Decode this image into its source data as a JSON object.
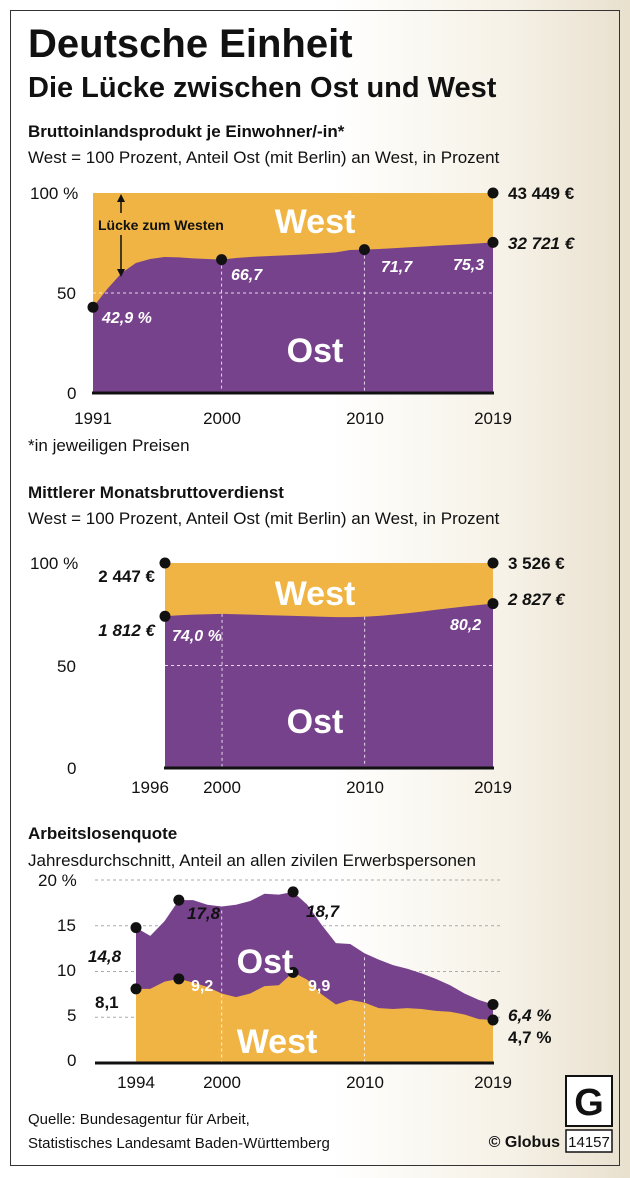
{
  "title": "Deutsche Einheit",
  "subtitle": "Die Lücke zwischen Ost und West",
  "colors": {
    "west": "#EFB443",
    "ost": "#77428C",
    "grid": "#ffffff"
  },
  "chart_data": [
    {
      "type": "area",
      "title": "Bruttoinlandsprodukt je Einwohner/-in*",
      "subtitle": "West = 100 Prozent, Anteil Ost (mit Berlin) an West, in Prozent",
      "footnote": "*in jeweiligen Preisen",
      "xlim": [
        1991,
        2019
      ],
      "ylim": [
        0,
        100
      ],
      "x_ticks": [
        "1991",
        "2000",
        "2010",
        "2019"
      ],
      "y_ticks": [
        "100 %",
        "50",
        "0"
      ],
      "area_labels": {
        "west": "West",
        "ost": "Ost"
      },
      "gap_label": "Lücke zum Westen",
      "x": [
        1991,
        1992,
        1993,
        1994,
        1995,
        1996,
        1997,
        1998,
        1999,
        2000,
        2001,
        2002,
        2003,
        2004,
        2005,
        2006,
        2007,
        2008,
        2009,
        2010,
        2011,
        2012,
        2013,
        2014,
        2015,
        2016,
        2017,
        2018,
        2019
      ],
      "series": [
        {
          "name": "West",
          "values": [
            100,
            100,
            100,
            100,
            100,
            100,
            100,
            100,
            100,
            100,
            100,
            100,
            100,
            100,
            100,
            100,
            100,
            100,
            100,
            100,
            100,
            100,
            100,
            100,
            100,
            100,
            100,
            100,
            100
          ]
        },
        {
          "name": "Ost",
          "values": [
            42.9,
            52,
            60,
            65,
            67,
            68,
            67.8,
            67.3,
            67,
            66.7,
            67.5,
            68,
            68.4,
            68.7,
            69,
            69.4,
            69.8,
            70.3,
            71.5,
            71.7,
            72,
            72.4,
            72.8,
            73.2,
            73.6,
            74,
            74.4,
            74.8,
            75.3
          ]
        }
      ],
      "data_labels": {
        "p1991": "42,9 %",
        "p2000": "66,7",
        "p2010": "71,7",
        "p2019": "75,3"
      },
      "end_values": {
        "west": "43 449 €",
        "ost": "32 721 €"
      }
    },
    {
      "type": "area",
      "title": "Mittlerer Monatsbruttoverdienst",
      "subtitle": "West = 100 Prozent, Anteil Ost (mit Berlin) an West, in Prozent",
      "xlim": [
        1996,
        2019
      ],
      "ylim": [
        0,
        100
      ],
      "x_ticks": [
        "1996",
        "2000",
        "2010",
        "2019"
      ],
      "y_ticks": [
        "100 %",
        "50",
        "0"
      ],
      "area_labels": {
        "west": "West",
        "ost": "Ost"
      },
      "x": [
        1996,
        1997,
        1998,
        1999,
        2000,
        2001,
        2002,
        2003,
        2004,
        2005,
        2006,
        2007,
        2008,
        2009,
        2010,
        2011,
        2012,
        2013,
        2014,
        2015,
        2016,
        2017,
        2018,
        2019
      ],
      "series": [
        {
          "name": "West",
          "values": [
            100,
            100,
            100,
            100,
            100,
            100,
            100,
            100,
            100,
            100,
            100,
            100,
            100,
            100,
            100,
            100,
            100,
            100,
            100,
            100,
            100,
            100,
            100,
            100
          ]
        },
        {
          "name": "Ost",
          "values": [
            74.0,
            74.5,
            74.8,
            75,
            75.2,
            75,
            74.8,
            74.6,
            74.4,
            74.2,
            74,
            73.8,
            73.6,
            73.6,
            73.8,
            74.2,
            74.8,
            75.5,
            76.3,
            77.2,
            78,
            78.8,
            79.5,
            80.2
          ]
        }
      ],
      "data_labels": {
        "p1996": "74,0 %",
        "p2019": "80,2"
      },
      "start_values": {
        "west": "2 447 €",
        "ost": "1 812 €"
      },
      "end_values": {
        "west": "3 526 €",
        "ost": "2 827 €"
      }
    },
    {
      "type": "area",
      "title": "Arbeitslosenquote",
      "subtitle": "Jahresdurchschnitt, Anteil an allen zivilen Erwerbspersonen",
      "xlim": [
        1994,
        2019
      ],
      "ylim": [
        0,
        20
      ],
      "x_ticks": [
        "1994",
        "2000",
        "2010",
        "2019"
      ],
      "y_ticks": [
        "20 %",
        "15",
        "10",
        "5",
        "0"
      ],
      "area_labels": {
        "west": "West",
        "ost": "Ost"
      },
      "x": [
        1994,
        1995,
        1996,
        1997,
        1998,
        1999,
        2000,
        2001,
        2002,
        2003,
        2004,
        2005,
        2006,
        2007,
        2008,
        2009,
        2010,
        2011,
        2012,
        2013,
        2014,
        2015,
        2016,
        2017,
        2018,
        2019
      ],
      "series": [
        {
          "name": "Ost",
          "values": [
            14.8,
            13.9,
            15.5,
            17.8,
            17.8,
            17.3,
            17.1,
            17.3,
            17.7,
            18.5,
            18.4,
            18.7,
            17.3,
            15.1,
            13.1,
            13.0,
            12.0,
            11.3,
            10.7,
            10.3,
            9.8,
            9.2,
            8.5,
            7.6,
            6.9,
            6.4
          ]
        },
        {
          "name": "West",
          "values": [
            8.1,
            8.1,
            8.9,
            9.2,
            8.8,
            8.3,
            7.6,
            7.2,
            7.6,
            8.4,
            8.5,
            9.9,
            9.1,
            7.5,
            6.4,
            6.9,
            6.6,
            6.0,
            5.9,
            6.0,
            5.9,
            5.7,
            5.6,
            5.3,
            4.8,
            4.7
          ]
        }
      ],
      "data_labels": {
        "ost1994": "14,8",
        "ost1997": "17,8",
        "ost2005": "18,7",
        "west1994": "8,1",
        "west1997": "9,2",
        "west2005": "9,9",
        "ost2019": "6,4 %",
        "west2019": "4,7 %"
      }
    }
  ],
  "source": {
    "line1": "Quelle: Bundesagentur für Arbeit,",
    "line2": "Statistisches Landesamt Baden-Württemberg"
  },
  "credit": {
    "label": "© Globus",
    "number": "14157",
    "logo_letter": "G"
  }
}
